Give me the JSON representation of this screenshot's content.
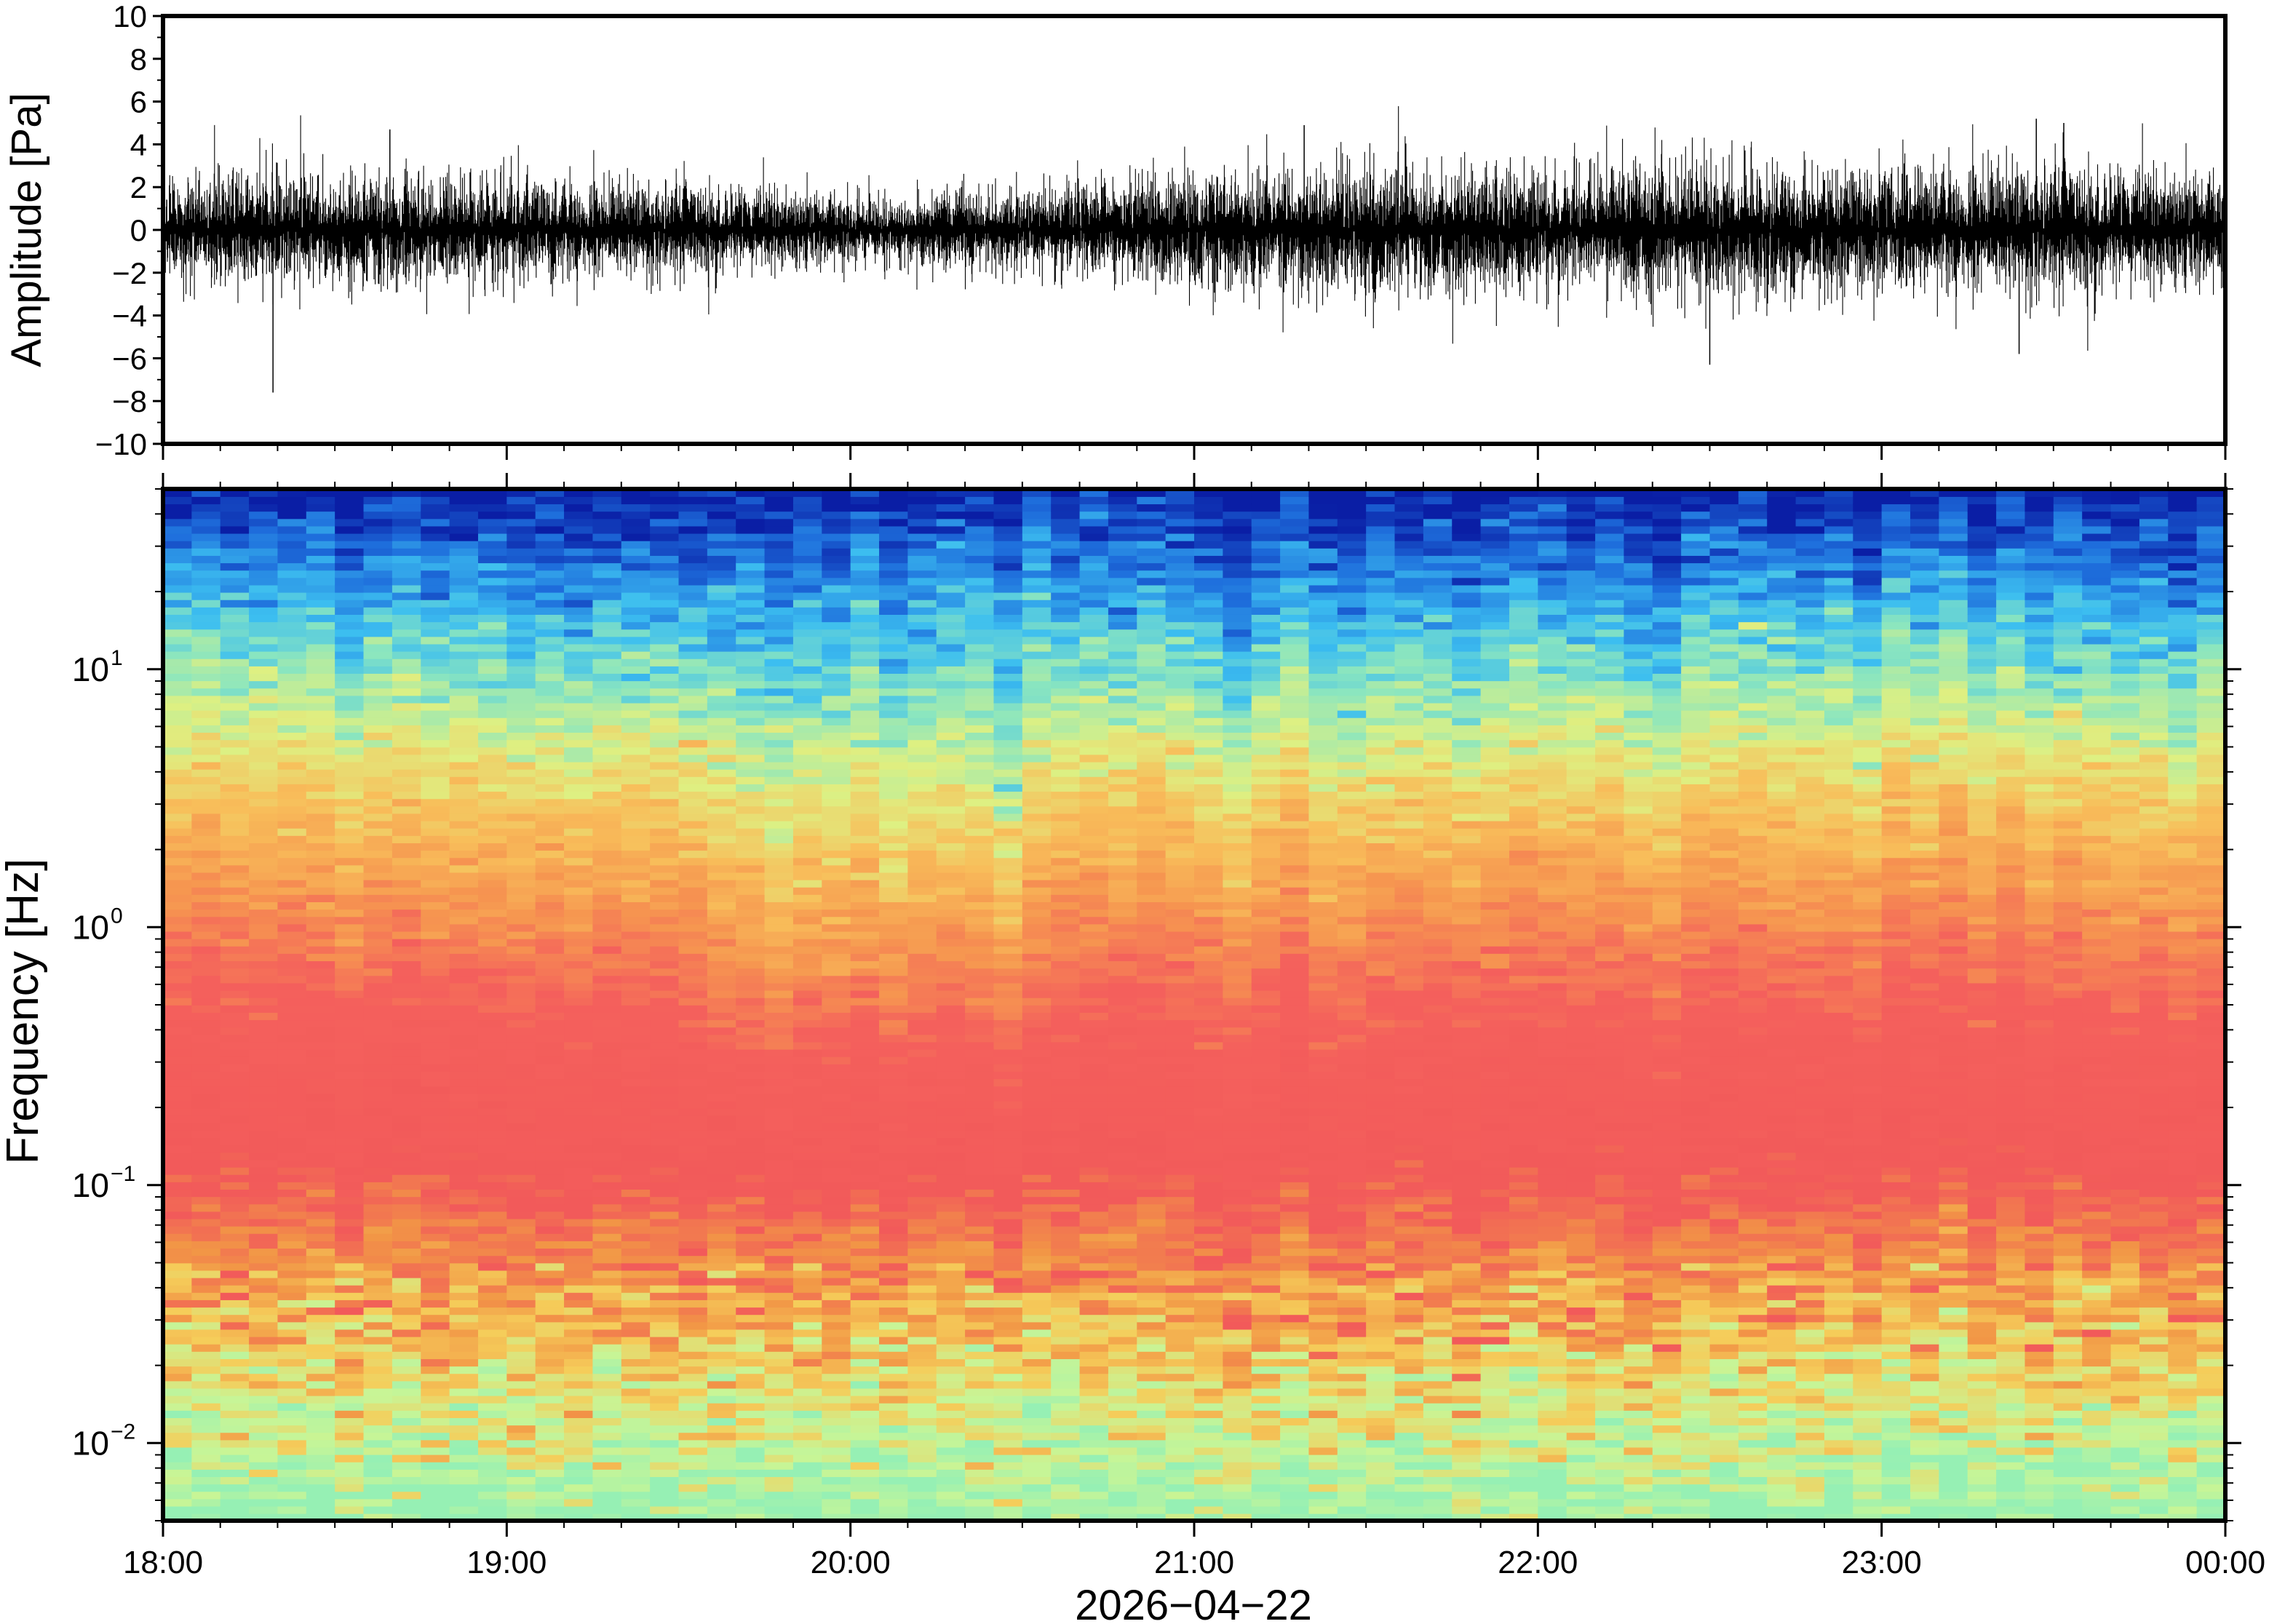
{
  "chart_data": [
    {
      "type": "line",
      "panel": "waveform",
      "ylabel": "Amplitude [Pa]",
      "ylim": [
        -10,
        10
      ],
      "yticks": [
        10,
        8,
        6,
        4,
        2,
        0,
        -2,
        -4,
        -6,
        -8,
        -10
      ],
      "ytick_labels": [
        "10",
        "8",
        "6",
        "4",
        "2",
        "0",
        "−2",
        "−4",
        "−6",
        "−8",
        "−10"
      ],
      "x_range": [
        "18:00",
        "00:00"
      ],
      "series": [
        {
          "color": "#000000",
          "noise_envelope_hours": [
            18.0,
            18.5,
            19.0,
            19.5,
            20.0,
            20.5,
            21.0,
            21.5,
            22.0,
            22.5,
            23.0,
            23.5,
            24.0
          ],
          "noise_envelope_amplitude": [
            1.4,
            1.5,
            1.3,
            1.2,
            0.9,
            1.0,
            1.5,
            1.7,
            1.6,
            1.7,
            1.6,
            1.7,
            1.4
          ],
          "notable_peaks": [
            {
              "hour": 18.32,
              "value": -7.6
            },
            {
              "hour": 18.66,
              "value": 4.7
            },
            {
              "hour": 21.32,
              "value": 4.9
            },
            {
              "hour": 22.5,
              "value": -6.3
            },
            {
              "hour": 23.45,
              "value": 5.2
            },
            {
              "hour": 23.53,
              "value": 5.0
            },
            {
              "hour": 23.4,
              "value": -5.8
            }
          ]
        }
      ]
    },
    {
      "type": "heatmap",
      "panel": "spectrogram",
      "ylabel": "Frequency [Hz]",
      "xlabel": "2026−04−22",
      "yscale": "log",
      "ylim": [
        0.005,
        50
      ],
      "yticks": [
        {
          "base": "10",
          "exp": "1",
          "value": 10
        },
        {
          "base": "10",
          "exp": "0",
          "value": 1
        },
        {
          "base": "10",
          "exp": "−1",
          "value": 0.1
        },
        {
          "base": "10",
          "exp": "−2",
          "value": 0.01
        }
      ],
      "xticks": [
        "18:00",
        "19:00",
        "20:00",
        "21:00",
        "22:00",
        "23:00",
        "00:00"
      ],
      "colormap": "jet-like",
      "colors": {
        "high_freq": "#0a1fa8",
        "mid_high": "#33b8f0",
        "mid": "#c8f07a",
        "mid_low": "#f5b24e",
        "low": "#f25757",
        "lowest": "#a8f0b8"
      }
    }
  ]
}
